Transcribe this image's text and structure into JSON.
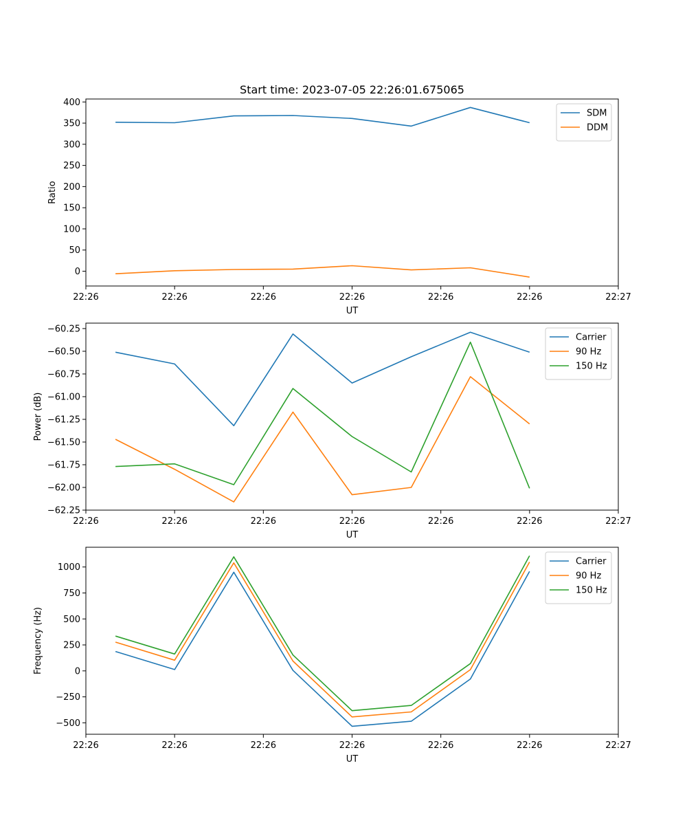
{
  "chart_data": [
    {
      "type": "line",
      "title": "Start time: 2023-07-05 22:26:01.675065",
      "xlabel": "UT",
      "ylabel": "Ratio",
      "x": [
        1,
        2,
        3,
        4,
        5,
        6,
        7,
        8
      ],
      "xlim": [
        0.5,
        9.5
      ],
      "xtick_values": [
        0.5,
        2,
        3.5,
        5,
        6.5,
        8,
        9.5
      ],
      "xtick_labels": [
        "22:26",
        "22:26",
        "22:26",
        "22:26",
        "22:26",
        "22:26",
        "22:27"
      ],
      "ylim": [
        -35,
        407
      ],
      "yticks": [
        0,
        50,
        100,
        150,
        200,
        250,
        300,
        350,
        400
      ],
      "legend_position": "top-right",
      "series": [
        {
          "name": "SDM",
          "color": "#1f77b4",
          "values": [
            352,
            351,
            367,
            368,
            361,
            343,
            387,
            351
          ]
        },
        {
          "name": "DDM",
          "color": "#ff7f0e",
          "values": [
            -6,
            1,
            4,
            5,
            13,
            3,
            8,
            -14
          ]
        }
      ]
    },
    {
      "type": "line",
      "title": "",
      "xlabel": "UT",
      "ylabel": "Power (dB)",
      "x": [
        1,
        2,
        3,
        4,
        5,
        6,
        7,
        8
      ],
      "xlim": [
        0.5,
        9.5
      ],
      "xtick_values": [
        0.5,
        2,
        3.5,
        5,
        6.5,
        8,
        9.5
      ],
      "xtick_labels": [
        "22:26",
        "22:26",
        "22:26",
        "22:26",
        "22:26",
        "22:26",
        "22:27"
      ],
      "ylim": [
        -62.25,
        -60.19
      ],
      "yticks": [
        -62.25,
        -62.0,
        -61.75,
        -61.5,
        -61.25,
        -61.0,
        -60.75,
        -60.5,
        -60.25
      ],
      "ytick_labels": [
        "−62.25",
        "−62.00",
        "−61.75",
        "−61.50",
        "−61.25",
        "−61.00",
        "−60.75",
        "−60.50",
        "−60.25"
      ],
      "legend_position": "top-right",
      "series": [
        {
          "name": "Carrier",
          "color": "#1f77b4",
          "values": [
            -60.51,
            -60.64,
            -61.32,
            -60.31,
            -60.85,
            -60.56,
            -60.29,
            -60.51
          ]
        },
        {
          "name": "90 Hz",
          "color": "#ff7f0e",
          "values": [
            -61.47,
            -61.8,
            -62.16,
            -61.17,
            -62.08,
            -62.0,
            -60.78,
            -61.3
          ]
        },
        {
          "name": "150 Hz",
          "color": "#2ca02c",
          "values": [
            -61.77,
            -61.74,
            -61.97,
            -60.91,
            -61.44,
            -61.83,
            -60.4,
            -62.01
          ]
        }
      ]
    },
    {
      "type": "line",
      "title": "",
      "xlabel": "UT",
      "ylabel": "Frequency (Hz)",
      "x": [
        1,
        2,
        3,
        4,
        5,
        6,
        7,
        8
      ],
      "xlim": [
        0.5,
        9.5
      ],
      "xtick_values": [
        0.5,
        2,
        3.5,
        5,
        6.5,
        8,
        9.5
      ],
      "xtick_labels": [
        "22:26",
        "22:26",
        "22:26",
        "22:26",
        "22:26",
        "22:26",
        "22:27"
      ],
      "ylim": [
        -610,
        1190
      ],
      "yticks": [
        -500,
        -250,
        0,
        250,
        500,
        750,
        1000
      ],
      "ytick_labels": [
        "−500",
        "−250",
        "0",
        "250",
        "500",
        "750",
        "1000"
      ],
      "legend_position": "top-right",
      "series": [
        {
          "name": "Carrier",
          "color": "#1f77b4",
          "values": [
            187,
            13,
            950,
            5,
            -533,
            -485,
            -78,
            958
          ]
        },
        {
          "name": "90 Hz",
          "color": "#ff7f0e",
          "values": [
            277,
            103,
            1040,
            95,
            -443,
            -395,
            12,
            1048
          ]
        },
        {
          "name": "150 Hz",
          "color": "#2ca02c",
          "values": [
            335,
            162,
            1098,
            153,
            -383,
            -333,
            70,
            1108
          ]
        }
      ]
    }
  ]
}
